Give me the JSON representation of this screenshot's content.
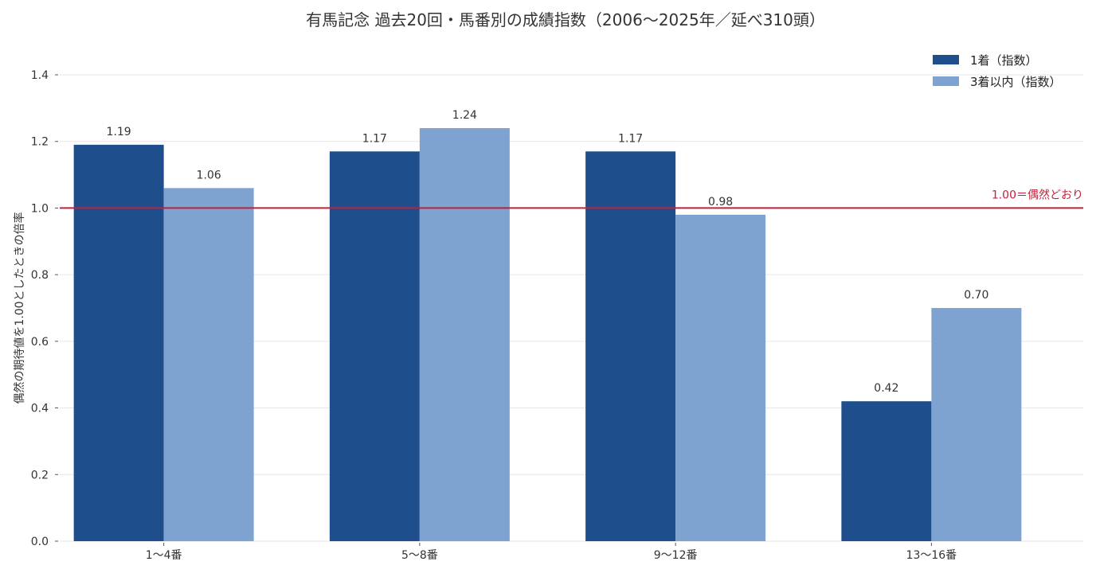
{
  "chart_data": {
    "type": "bar",
    "title": "有馬記念 過去20回・馬番別の成績指数（2006〜2025年／延べ310頭）",
    "xlabel": "",
    "ylabel": "偶然の期待値を1.00としたときの倍率",
    "categories": [
      "1〜4番",
      "5〜8番",
      "9〜12番",
      "13〜16番"
    ],
    "series": [
      {
        "name": "1着（指数）",
        "color": "#1f4e8c",
        "values": [
          1.19,
          1.17,
          1.17,
          0.42
        ],
        "labels": [
          "1.19",
          "1.17",
          "1.17",
          "0.42"
        ]
      },
      {
        "name": "3着以内（指数）",
        "color": "#7fa3d0",
        "values": [
          1.06,
          1.24,
          0.98,
          0.7
        ],
        "labels": [
          "1.06",
          "1.24",
          "0.98",
          "0.70"
        ]
      }
    ],
    "ylim": [
      0,
      1.4
    ],
    "yticks": [
      "0.0",
      "0.2",
      "0.4",
      "0.6",
      "0.8",
      "1.0",
      "1.2",
      "1.4"
    ],
    "reference_line": {
      "value": 1.0,
      "label": "1.00＝偶然どおり",
      "color": "#c0203a"
    },
    "grid": true,
    "legend": "top-right"
  }
}
